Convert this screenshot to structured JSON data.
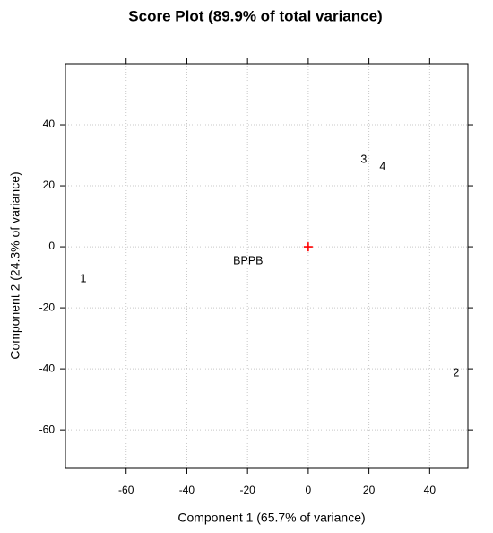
{
  "chart_data": {
    "type": "scatter",
    "title": "Score Plot (89.9% of total variance)",
    "x_label": "Component 1 (65.7% of variance)",
    "y_label": "Component 2 (24.3% of variance)",
    "labels": [
      "1",
      "2",
      "3",
      "4",
      "BPPB"
    ],
    "x": [
      -74.1,
      48.7,
      18.3,
      24.5,
      -19.8
    ],
    "y": [
      -10.6,
      -41.5,
      28.5,
      26.2,
      -4.7
    ],
    "origin_marker": {
      "x": 0,
      "y": 0,
      "color": "#ff0000"
    },
    "xlim": [
      -80,
      52.6
    ],
    "ylim": [
      -72.6,
      60
    ],
    "xticks": [
      -60,
      -40,
      -20,
      0,
      20,
      40
    ],
    "yticks": [
      -60,
      -40,
      -20,
      0,
      20,
      40
    ],
    "grid": true
  }
}
